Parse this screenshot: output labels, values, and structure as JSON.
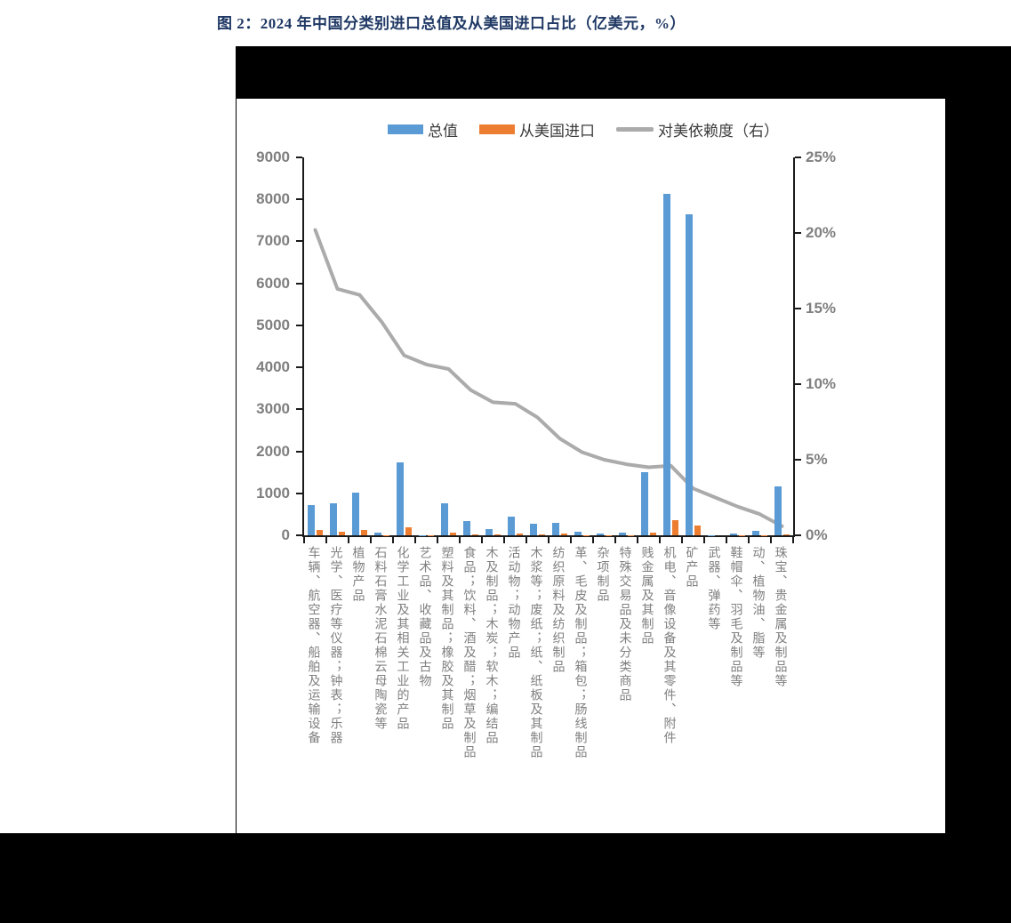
{
  "figure": {
    "title": "图 2：2024 年中国分类别进口总值及从美国进口占比（亿美元，%）"
  },
  "legend": [
    {
      "label": "总值",
      "type": "bar",
      "color": "#5B9BD5"
    },
    {
      "label": "从美国进口",
      "type": "bar",
      "color": "#ED7D31"
    },
    {
      "label": "对美依赖度（右）",
      "type": "line",
      "color": "#ABABAB"
    }
  ],
  "axes": {
    "left_tick_labels": [
      "9000",
      "8000",
      "7000",
      "6000",
      "5000",
      "4000",
      "3000",
      "2000",
      "1000",
      "0"
    ],
    "right_tick_labels": [
      "25%",
      "20%",
      "15%",
      "10%",
      "5%",
      "0%"
    ]
  },
  "chart_data": {
    "type": "bar",
    "title": "2024 年中国分类别进口总值及从美国进口占比（亿美元，%）",
    "categories": [
      "车辆、航空器、船舶及运输设备",
      "光学、医疗等仪器；钟表；乐器",
      "植物产品",
      "石料石膏水泥石棉云母陶瓷等",
      "化学工业及其相关工业的产品",
      "艺术品、收藏品及古物",
      "塑料及其制品；橡胶及其制品",
      "食品；饮料、酒及醋；烟草及制品",
      "木及制品；木炭；软木；编结品",
      "活动物；动物产品",
      "木浆等；废纸；纸、纸板及其制品",
      "纺织原料及纺织制品",
      "革、毛皮及制品；箱包；肠线制品",
      "杂项制品",
      "特殊交易品及未分类商品",
      "贱金属及其制品",
      "机电、音像设备及其零件、附件",
      "矿产品",
      "武器、弹药等",
      "鞋帽伞、羽毛及制品等",
      "动、植物油、脂等",
      "珠宝、贵金属及制品等"
    ],
    "series": [
      {
        "name": "总值",
        "type": "bar",
        "axis": "left",
        "color": "#5B9BD5",
        "values": [
          730,
          760,
          1010,
          75,
          1740,
          10,
          770,
          335,
          145,
          455,
          275,
          290,
          85,
          45,
          70,
          1500,
          8130,
          7650,
          5,
          50,
          105,
          1160
        ]
      },
      {
        "name": "从美国进口",
        "type": "bar",
        "axis": "left",
        "color": "#ED7D31",
        "values": [
          135,
          95,
          130,
          10,
          190,
          2,
          65,
          30,
          12,
          38,
          20,
          38,
          5,
          3,
          4,
          60,
          355,
          240,
          1,
          3,
          4,
          15
        ]
      },
      {
        "name": "对美依赖度（右）",
        "type": "line",
        "axis": "right",
        "color": "#ABABAB",
        "values": [
          20.2,
          16.3,
          15.9,
          14.1,
          11.9,
          11.3,
          11.0,
          9.6,
          8.8,
          8.7,
          7.8,
          6.4,
          5.5,
          5.0,
          4.7,
          4.5,
          4.6,
          3.1,
          2.5,
          1.9,
          1.4,
          0.6
        ]
      }
    ],
    "left_axis": {
      "min": 0,
      "max": 9000,
      "step": 1000
    },
    "right_axis": {
      "min": 0,
      "max": 25,
      "step": 5,
      "unit": "%"
    },
    "grid": false,
    "legend_position": "top"
  }
}
